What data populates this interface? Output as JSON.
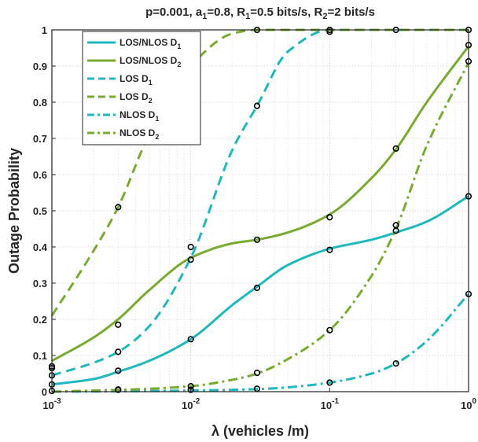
{
  "chart_data": {
    "type": "line",
    "title": "p=0.001, a1=0.8, R1=0.5 bits/s, R2=2 bits/s",
    "title_parts": [
      {
        "t": "p=0.001, a"
      },
      {
        "t": "1",
        "sub": true
      },
      {
        "t": "=0.8, R"
      },
      {
        "t": "1",
        "sub": true
      },
      {
        "t": "=0.5 bits/s, R"
      },
      {
        "t": "2",
        "sub": true
      },
      {
        "t": "=2 bits/s"
      }
    ],
    "xlabel": "λ (vehicles /m)",
    "ylabel": "Outage Probability",
    "xscale": "log",
    "xlim": [
      0.001,
      1
    ],
    "ylim": [
      0,
      1
    ],
    "yticks": [
      0,
      0.1,
      0.2,
      0.3,
      0.4,
      0.5,
      0.6,
      0.7,
      0.8,
      0.9,
      1
    ],
    "ytick_labels": [
      "0",
      "0.1",
      "0.2",
      "0.3",
      "0.4",
      "0.5",
      "0.6",
      "0.7",
      "0.8",
      "0.9",
      "1"
    ],
    "xtick_base": "10",
    "xtick_exponents": [
      "-3",
      "-2",
      "-1",
      "0"
    ],
    "grid": true,
    "legend_position": "top-left",
    "series": [
      {
        "name": "LOS/NLOS D1",
        "name_main": "LOS/NLOS D",
        "name_sub": "1",
        "color": "#1FB8BE",
        "style": "solid",
        "x": [
          0.001,
          0.002,
          0.003,
          0.005,
          0.01,
          0.02,
          0.03,
          0.05,
          0.1,
          0.2,
          0.3,
          0.5,
          1
        ],
        "y": [
          0.02,
          0.035,
          0.055,
          0.085,
          0.145,
          0.24,
          0.29,
          0.35,
          0.395,
          0.42,
          0.44,
          0.47,
          0.54
        ]
      },
      {
        "name": "LOS/NLOS D2",
        "name_main": "LOS/NLOS D",
        "name_sub": "2",
        "color": "#77AC30",
        "style": "solid",
        "x": [
          0.001,
          0.002,
          0.003,
          0.005,
          0.01,
          0.02,
          0.03,
          0.05,
          0.1,
          0.2,
          0.3,
          0.5,
          1
        ],
        "y": [
          0.085,
          0.15,
          0.2,
          0.28,
          0.37,
          0.41,
          0.42,
          0.44,
          0.49,
          0.59,
          0.67,
          0.8,
          0.955
        ]
      },
      {
        "name": "LOS D1",
        "name_main": "LOS D",
        "name_sub": "1",
        "color": "#1FB8BE",
        "style": "dash",
        "x": [
          0.001,
          0.002,
          0.003,
          0.005,
          0.01,
          0.02,
          0.03,
          0.05,
          0.1,
          0.2,
          0.3,
          1
        ],
        "y": [
          0.045,
          0.08,
          0.11,
          0.18,
          0.37,
          0.67,
          0.79,
          0.94,
          1.0,
          1.0,
          1.0,
          1.0
        ]
      },
      {
        "name": "LOS D2",
        "name_main": "LOS D",
        "name_sub": "2",
        "color": "#77AC30",
        "style": "dash",
        "x": [
          0.001,
          0.002,
          0.003,
          0.005,
          0.01,
          0.02,
          0.03,
          0.05,
          0.1,
          0.3,
          1
        ],
        "y": [
          0.21,
          0.39,
          0.51,
          0.71,
          0.9,
          0.99,
          1.0,
          1.0,
          1.0,
          1.0,
          1.0
        ]
      },
      {
        "name": "NLOS D1",
        "name_main": "NLOS D",
        "name_sub": "1",
        "color": "#1FB8BE",
        "style": "dashdot",
        "x": [
          0.001,
          0.003,
          0.01,
          0.03,
          0.05,
          0.1,
          0.2,
          0.3,
          0.5,
          1
        ],
        "y": [
          0.0,
          0.001,
          0.003,
          0.007,
          0.012,
          0.025,
          0.05,
          0.078,
          0.14,
          0.27
        ]
      },
      {
        "name": "NLOS D2",
        "name_main": "NLOS D",
        "name_sub": "2",
        "color": "#77AC30",
        "style": "dashdot",
        "x": [
          0.001,
          0.003,
          0.005,
          0.01,
          0.02,
          0.03,
          0.05,
          0.1,
          0.2,
          0.3,
          0.5,
          1
        ],
        "y": [
          0.0,
          0.005,
          0.008,
          0.015,
          0.033,
          0.05,
          0.09,
          0.17,
          0.32,
          0.45,
          0.68,
          0.91
        ]
      }
    ],
    "markers": {
      "style": "circle",
      "color": "#000000",
      "points": [
        [
          0.001,
          0.002
        ],
        [
          0.001,
          0.02
        ],
        [
          0.001,
          0.045
        ],
        [
          0.001,
          0.065
        ],
        [
          0.001,
          0.07
        ],
        [
          0.003,
          0.005
        ],
        [
          0.003,
          0.006
        ],
        [
          0.003,
          0.058
        ],
        [
          0.003,
          0.11
        ],
        [
          0.003,
          0.185
        ],
        [
          0.003,
          0.51
        ],
        [
          0.01,
          0.005
        ],
        [
          0.01,
          0.015
        ],
        [
          0.01,
          0.145
        ],
        [
          0.01,
          0.365
        ],
        [
          0.01,
          0.4
        ],
        [
          0.03,
          0.008
        ],
        [
          0.03,
          0.052
        ],
        [
          0.03,
          0.287
        ],
        [
          0.03,
          0.42
        ],
        [
          0.03,
          0.79
        ],
        [
          0.03,
          1.0
        ],
        [
          0.1,
          0.025
        ],
        [
          0.1,
          0.17
        ],
        [
          0.1,
          0.392
        ],
        [
          0.1,
          0.482
        ],
        [
          0.1,
          0.995
        ],
        [
          0.1,
          1.0
        ],
        [
          0.3,
          0.078
        ],
        [
          0.3,
          0.445
        ],
        [
          0.3,
          0.46
        ],
        [
          0.3,
          0.672
        ],
        [
          0.3,
          1.0
        ],
        [
          1,
          0.27
        ],
        [
          1,
          0.54
        ],
        [
          1,
          0.913
        ],
        [
          1,
          0.958
        ],
        [
          1,
          1.0
        ]
      ]
    }
  }
}
